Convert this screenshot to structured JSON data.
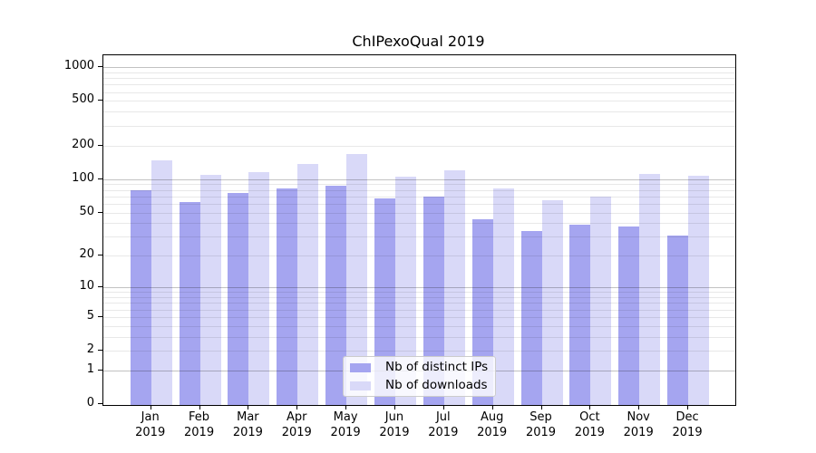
{
  "chart_data": {
    "type": "bar",
    "title": "ChIPexoQual 2019",
    "categories": [
      "Jan",
      "Feb",
      "Mar",
      "Apr",
      "May",
      "Jun",
      "Jul",
      "Aug",
      "Sep",
      "Oct",
      "Nov",
      "Dec"
    ],
    "year_label": "2019",
    "series": [
      {
        "name": "Nb of distinct IPs",
        "color": "#a5a5f0",
        "values": [
          80,
          62,
          75,
          83,
          87,
          67,
          70,
          43,
          34,
          39,
          37,
          31
        ]
      },
      {
        "name": "Nb of downloads",
        "color": "#d9d9f8",
        "values": [
          147,
          109,
          116,
          137,
          167,
          105,
          119,
          83,
          65,
          69,
          112,
          108
        ]
      }
    ],
    "y_axis": {
      "scale": "log1p",
      "tick_values": [
        0,
        1,
        2,
        5,
        10,
        20,
        50,
        100,
        200,
        500,
        1000
      ],
      "minor_gridline_values": [
        2,
        3,
        4,
        5,
        6,
        7,
        8,
        9,
        20,
        30,
        40,
        50,
        60,
        70,
        80,
        90,
        200,
        300,
        400,
        500,
        600,
        700,
        800,
        900
      ],
      "major_gridline_values": [
        1,
        10,
        100,
        1000
      ],
      "range": [
        0,
        1000
      ]
    },
    "legend_position": "bottom-center",
    "grid": true,
    "colors": {
      "background": "#ffffff",
      "spine": "#000000",
      "major_grid": "#c2c2c2",
      "minor_grid": "#e8e8e8"
    }
  }
}
